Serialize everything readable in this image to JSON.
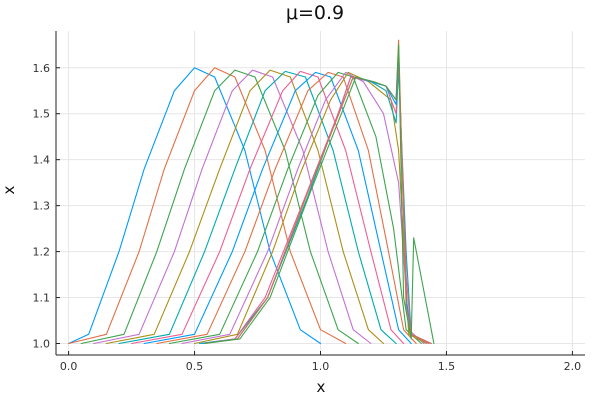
{
  "chart_data": {
    "type": "line",
    "title": "μ=0.9",
    "xlabel": "x",
    "ylabel": "x",
    "xlim": [
      -0.05,
      2.05
    ],
    "ylim": [
      0.975,
      1.68
    ],
    "x_ticks": [
      0.0,
      0.5,
      1.0,
      1.5,
      2.0
    ],
    "x_tick_labels": [
      "0.0",
      "0.5",
      "1.0",
      "1.5",
      "2.0"
    ],
    "y_ticks": [
      1.0,
      1.1,
      1.2,
      1.3,
      1.4,
      1.5,
      1.6
    ],
    "y_tick_labels": [
      "1.0",
      "1.1",
      "1.2",
      "1.3",
      "1.4",
      "1.5",
      "1.6"
    ],
    "grid": true,
    "legend": "none",
    "palette": [
      "#009AFA",
      "#E36F47",
      "#3EA44E",
      "#C371D2",
      "#AC8E18",
      "#00AAAE",
      "#ED5E93"
    ],
    "series": [
      {
        "x": [
          0.0,
          0.08,
          0.2,
          0.3,
          0.42,
          0.5,
          0.58,
          0.7,
          0.8,
          0.92,
          1.0
        ],
        "values": [
          1.0,
          1.02,
          1.2,
          1.38,
          1.55,
          1.6,
          1.58,
          1.42,
          1.2,
          1.03,
          1.0
        ]
      },
      {
        "x": [
          0.0,
          0.15,
          0.28,
          0.38,
          0.5,
          0.58,
          0.66,
          0.78,
          0.88,
          1.0,
          1.1
        ],
        "values": [
          1.0,
          1.02,
          1.2,
          1.38,
          1.55,
          1.6,
          1.58,
          1.42,
          1.2,
          1.03,
          1.0
        ]
      },
      {
        "x": [
          0.05,
          0.22,
          0.35,
          0.46,
          0.58,
          0.66,
          0.74,
          0.86,
          0.96,
          1.07,
          1.15
        ],
        "values": [
          1.0,
          1.02,
          1.2,
          1.38,
          1.55,
          1.595,
          1.58,
          1.42,
          1.2,
          1.03,
          1.0
        ]
      },
      {
        "x": [
          0.1,
          0.28,
          0.42,
          0.53,
          0.65,
          0.73,
          0.81,
          0.93,
          1.03,
          1.13,
          1.2
        ],
        "values": [
          1.0,
          1.02,
          1.2,
          1.38,
          1.55,
          1.595,
          1.58,
          1.42,
          1.2,
          1.03,
          1.0
        ]
      },
      {
        "x": [
          0.15,
          0.34,
          0.48,
          0.6,
          0.72,
          0.8,
          0.88,
          0.99,
          1.09,
          1.19,
          1.25
        ],
        "values": [
          1.0,
          1.02,
          1.2,
          1.38,
          1.55,
          1.595,
          1.58,
          1.42,
          1.2,
          1.03,
          1.0
        ]
      },
      {
        "x": [
          0.2,
          0.4,
          0.54,
          0.66,
          0.78,
          0.86,
          0.94,
          1.05,
          1.15,
          1.24,
          1.3
        ],
        "values": [
          1.0,
          1.02,
          1.2,
          1.38,
          1.55,
          1.592,
          1.58,
          1.42,
          1.2,
          1.03,
          1.0
        ]
      },
      {
        "x": [
          0.25,
          0.45,
          0.6,
          0.72,
          0.85,
          0.92,
          0.99,
          1.1,
          1.2,
          1.28,
          1.33
        ],
        "values": [
          1.0,
          1.02,
          1.2,
          1.38,
          1.55,
          1.592,
          1.58,
          1.42,
          1.2,
          1.03,
          1.0
        ]
      },
      {
        "x": [
          0.3,
          0.5,
          0.65,
          0.77,
          0.9,
          0.98,
          1.04,
          1.15,
          1.24,
          1.31,
          1.36
        ],
        "values": [
          1.0,
          1.02,
          1.2,
          1.38,
          1.55,
          1.59,
          1.58,
          1.42,
          1.2,
          1.03,
          1.0
        ]
      },
      {
        "x": [
          0.35,
          0.55,
          0.7,
          0.82,
          0.95,
          1.03,
          1.09,
          1.19,
          1.27,
          1.33,
          1.38
        ],
        "values": [
          1.0,
          1.02,
          1.2,
          1.38,
          1.55,
          1.59,
          1.58,
          1.42,
          1.2,
          1.03,
          1.0
        ]
      },
      {
        "x": [
          0.4,
          0.6,
          0.75,
          0.87,
          0.99,
          1.07,
          1.13,
          1.22,
          1.29,
          1.34,
          1.4
        ],
        "values": [
          1.0,
          1.02,
          1.2,
          1.38,
          1.54,
          1.59,
          1.58,
          1.45,
          1.25,
          1.03,
          1.0
        ]
      },
      {
        "x": [
          0.45,
          0.64,
          0.79,
          0.91,
          1.02,
          1.1,
          1.17,
          1.25,
          1.31,
          1.35,
          1.41
        ],
        "values": [
          1.0,
          1.02,
          1.2,
          1.38,
          1.53,
          1.59,
          1.57,
          1.5,
          1.35,
          1.03,
          1.0
        ]
      },
      {
        "x": [
          0.5,
          0.67,
          0.81,
          0.92,
          1.04,
          1.11,
          1.19,
          1.28,
          1.31,
          1.35,
          1.42
        ],
        "values": [
          1.0,
          1.02,
          1.2,
          1.37,
          1.53,
          1.59,
          1.57,
          1.53,
          1.42,
          1.02,
          1.0
        ]
      },
      {
        "x": [
          0.52,
          0.66,
          0.79,
          0.95,
          1.07,
          1.12,
          1.2,
          1.26,
          1.3,
          1.31,
          1.34,
          1.36,
          1.43
        ],
        "values": [
          1.0,
          1.01,
          1.1,
          1.32,
          1.5,
          1.58,
          1.57,
          1.55,
          1.48,
          1.6,
          1.2,
          1.02,
          1.0
        ]
      },
      {
        "x": [
          0.53,
          0.66,
          0.78,
          0.94,
          1.07,
          1.12,
          1.2,
          1.26,
          1.3,
          1.31,
          1.34,
          1.36,
          1.43
        ],
        "values": [
          1.0,
          1.01,
          1.1,
          1.32,
          1.5,
          1.58,
          1.57,
          1.56,
          1.5,
          1.62,
          1.15,
          1.02,
          1.0
        ]
      },
      {
        "x": [
          0.53,
          0.67,
          0.79,
          0.95,
          1.08,
          1.13,
          1.2,
          1.26,
          1.3,
          1.31,
          1.34,
          1.36,
          1.44
        ],
        "values": [
          1.0,
          1.01,
          1.1,
          1.33,
          1.51,
          1.58,
          1.57,
          1.56,
          1.52,
          1.64,
          1.1,
          1.02,
          1.0
        ]
      },
      {
        "x": [
          0.54,
          0.67,
          0.79,
          0.95,
          1.08,
          1.13,
          1.21,
          1.26,
          1.3,
          1.31,
          1.34,
          1.36,
          1.44
        ],
        "values": [
          1.0,
          1.01,
          1.1,
          1.33,
          1.51,
          1.58,
          1.57,
          1.56,
          1.53,
          1.66,
          1.08,
          1.02,
          1.0
        ]
      },
      {
        "x": [
          0.54,
          0.68,
          0.8,
          0.96,
          1.09,
          1.14,
          1.21,
          1.26,
          1.3,
          1.31,
          1.33,
          1.35,
          1.36,
          1.37,
          1.45
        ],
        "values": [
          1.0,
          1.01,
          1.1,
          1.33,
          1.51,
          1.58,
          1.57,
          1.56,
          1.53,
          1.65,
          1.1,
          1.04,
          1.01,
          1.23,
          1.0
        ]
      }
    ]
  }
}
